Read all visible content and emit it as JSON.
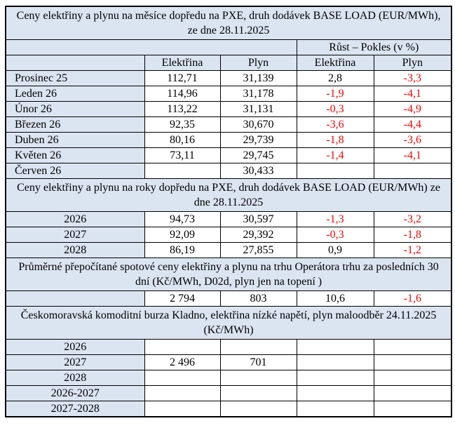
{
  "theme": {
    "header_bg": "#dbe5f1",
    "border_color": "#000000",
    "text_color": "#000000",
    "negative_value_color": "#ff0000"
  },
  "table": {
    "growth_header": "Růst – Pokles (v %)",
    "column_headers": [
      "Elektřina",
      "Plyn",
      "Elektřina",
      "Plyn"
    ],
    "sections": [
      {
        "title": "Ceny elektřiny a plynu na měsíce dopředu na PXE, druh dodávek BASE LOAD (EUR/MWh), ze dne 28.11.2025",
        "show_column_headers": true,
        "label_align": "left",
        "rows": [
          {
            "label": "Prosinec 25",
            "cells": [
              "112,71",
              "31,139",
              "2,8",
              "-3,3"
            ]
          },
          {
            "label": "Leden 26",
            "cells": [
              "114,96",
              "31,178",
              "-1,9",
              "-4,1"
            ]
          },
          {
            "label": "Únor 26",
            "cells": [
              "113,22",
              "31,131",
              "-0,3",
              "-4,9"
            ]
          },
          {
            "label": "Březen 26",
            "cells": [
              "92,35",
              "30,670",
              "-3,6",
              "-4,4"
            ]
          },
          {
            "label": "Duben 26",
            "cells": [
              "80,16",
              "29,739",
              "-1,8",
              "-3,6"
            ]
          },
          {
            "label": "Květen 26",
            "cells": [
              "73,11",
              "29,745",
              "-1,4",
              "-4,1"
            ]
          },
          {
            "label": "Červen 26",
            "cells": [
              "",
              "30,433",
              "",
              ""
            ]
          }
        ]
      },
      {
        "title": "Ceny elektřiny a plynu na roky dopředu na PXE, druh dodávek BASE LOAD (EUR/MWh) ze dne 28.11.2025",
        "show_column_headers": false,
        "label_align": "center",
        "rows": [
          {
            "label": "2026",
            "cells": [
              "94,73",
              "30,597",
              "-1,3",
              "-3,2"
            ]
          },
          {
            "label": "2027",
            "cells": [
              "92,09",
              "29,392",
              "-0,3",
              "-1,8"
            ]
          },
          {
            "label": "2028",
            "cells": [
              "86,19",
              "27,855",
              "0,9",
              "-1,2"
            ]
          }
        ]
      },
      {
        "title": "Průměrné přepočítané spotové ceny elektřiny a plynu na trhu Operátora trhu za posledních 30 dní (Kč/MWh, D02d, plyn jen na topení )",
        "show_column_headers": false,
        "label_align": "center",
        "rows": [
          {
            "label": "",
            "cells": [
              "2 794",
              "803",
              "10,6",
              "-1,6"
            ]
          }
        ]
      },
      {
        "title": "Českomoravská komoditní burza Kladno, elektřina nízké napětí, plyn maloodběr 24.11.2025 (Kč/MWh)",
        "show_column_headers": false,
        "label_align": "center",
        "rows": [
          {
            "label": "2026",
            "cells": [
              "",
              "",
              "",
              ""
            ]
          },
          {
            "label": "2027",
            "cells": [
              "2 496",
              "701",
              "",
              ""
            ]
          },
          {
            "label": "2028",
            "cells": [
              "",
              "",
              "",
              ""
            ]
          },
          {
            "label": "2026-2027",
            "cells": [
              "",
              "",
              "",
              ""
            ]
          },
          {
            "label": "2027-2028",
            "cells": [
              "",
              "",
              "",
              ""
            ]
          }
        ]
      }
    ]
  }
}
